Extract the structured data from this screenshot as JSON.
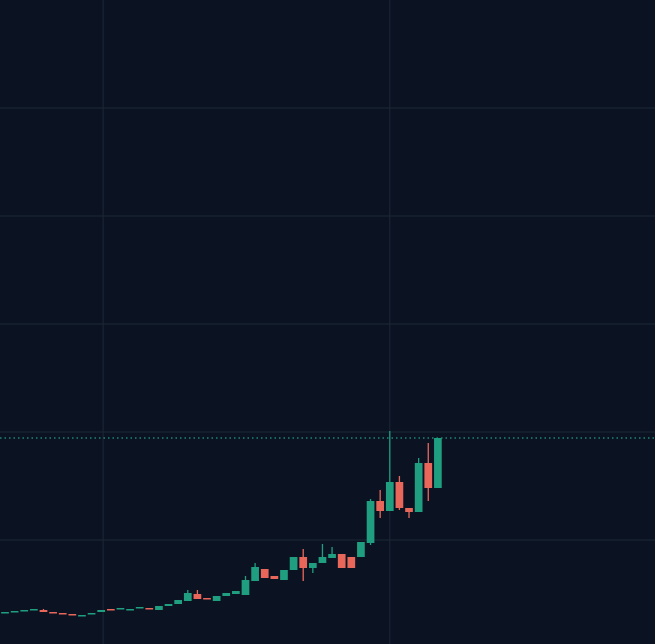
{
  "chart_data": {
    "type": "candlestick",
    "categories": [
      null,
      null,
      null,
      null,
      null,
      null,
      null,
      null,
      null,
      null,
      null,
      null,
      null,
      null,
      null,
      null,
      null,
      null,
      null,
      null,
      null,
      null,
      null,
      null,
      null,
      null,
      null,
      null,
      null,
      null,
      null,
      null,
      null,
      null,
      null,
      null,
      null,
      null,
      null,
      null,
      null,
      null,
      null,
      null,
      null,
      null
    ],
    "open": [
      31,
      32,
      33,
      34,
      34,
      32,
      31,
      30,
      28,
      30,
      32,
      35,
      35,
      34,
      36,
      36,
      34,
      38,
      40,
      43,
      50,
      46,
      43,
      48,
      50,
      49,
      63,
      75,
      68,
      64,
      74,
      87,
      76,
      81,
      86,
      90,
      87,
      87,
      101,
      143,
      133,
      162,
      136,
      132,
      181,
      156
    ],
    "high": [
      32,
      33,
      34,
      35,
      35,
      32,
      31,
      30,
      29,
      31,
      34,
      35,
      36,
      35,
      37,
      36,
      38,
      40,
      44,
      54,
      54,
      46,
      48,
      51,
      53,
      68,
      81,
      75,
      68,
      74,
      87,
      95,
      81,
      100,
      97,
      90,
      87,
      102,
      145,
      154,
      213,
      168,
      136,
      186,
      201,
      206
    ],
    "low": [
      31,
      32,
      33,
      34,
      32,
      31,
      30,
      29,
      28,
      30,
      32,
      34,
      35,
      34,
      36,
      35,
      34,
      38,
      40,
      43,
      45,
      45,
      43,
      48,
      50,
      49,
      63,
      66,
      65,
      64,
      74,
      63,
      71,
      81,
      86,
      76,
      76,
      87,
      99,
      126,
      133,
      134,
      126,
      132,
      143,
      156
    ],
    "close": [
      32,
      33,
      34,
      35,
      32,
      31,
      30,
      29,
      29,
      31,
      34,
      34,
      36,
      35,
      37,
      35,
      38,
      40,
      44,
      51,
      45,
      45,
      48,
      51,
      53,
      64,
      77,
      66,
      65,
      74,
      87,
      76,
      81,
      87,
      90,
      76,
      76,
      102,
      143,
      133,
      162,
      136,
      132,
      181,
      156,
      206
    ],
    "up_color": "#1f9e80",
    "down_color": "#e8675a",
    "xlim": [
      -0.52,
      67.57
    ],
    "xticks": [
      10.2,
      40
    ],
    "ylim": [
      0,
      644
    ],
    "yticks": [
      104,
      212,
      320,
      428,
      536
    ],
    "grid": true,
    "last_price_line": true
  }
}
